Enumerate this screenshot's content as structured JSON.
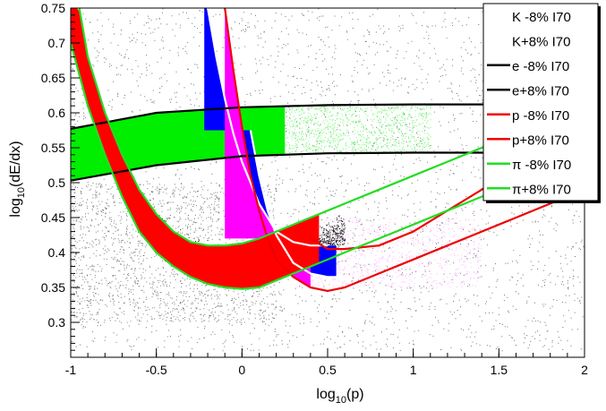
{
  "chart_data": {
    "type": "scatter",
    "xlabel": "log10(p)",
    "ylabel": "log10(dE/dx)",
    "xlabel_main": "log",
    "xlabel_sub": "10",
    "xlabel_rest": "(p)",
    "ylabel_main": "log",
    "ylabel_sub": "10",
    "ylabel_rest": "(dE/dx)",
    "xlim": [
      -1,
      2
    ],
    "ylim": [
      0.25,
      0.75
    ],
    "x_ticks": [
      -1,
      -0.5,
      0,
      0.5,
      1,
      1.5,
      2
    ],
    "x_tick_labels": [
      "-1",
      "-0.5",
      "0",
      "0.5",
      "1",
      "1.5",
      "2"
    ],
    "y_ticks": [
      0.3,
      0.35,
      0.4,
      0.45,
      0.5,
      0.55,
      0.6,
      0.65,
      0.7,
      0.75
    ],
    "y_tick_labels": [
      "0.3",
      "0.35",
      "0.4",
      "0.45",
      "0.5",
      "0.55",
      "0.6",
      "0.65",
      "0.7",
      "0.75"
    ],
    "legend_position": "top-right",
    "colors": {
      "data_points": "#000000",
      "electron_band": "#00ee00",
      "proton_band": "#ff0000",
      "pion_band": "#ff0000",
      "kaon_band": "#0000ff",
      "kaon_inner": "#ff00ff",
      "kaon_line": "#ffffff",
      "electron_line": "#000000",
      "proton_line": "#ee0000",
      "pion_line": "#22dd22"
    },
    "legend": [
      {
        "label": "K -8%  I70",
        "color": "#ffffff"
      },
      {
        "label": "K+8%  I70",
        "color": "#ffffff"
      },
      {
        "label": "e -8%  I70",
        "color": "#000000"
      },
      {
        "label": "e+8%  I70",
        "color": "#000000"
      },
      {
        "label": "p -8%  I70",
        "color": "#ee0000"
      },
      {
        "label": "p+8%  I70",
        "color": "#ee0000"
      },
      {
        "label": "π -8%  I70",
        "color": "#22dd22"
      },
      {
        "label": "π+8%  I70",
        "color": "#22dd22"
      }
    ],
    "series": [
      {
        "name": "K -8%  I70",
        "x": [
          0.05,
          0.1,
          0.15,
          0.2,
          0.3,
          0.4,
          0.5,
          0.6
        ],
        "y": [
          0.575,
          0.51,
          0.46,
          0.425,
          0.385,
          0.37,
          0.365,
          0.365
        ]
      },
      {
        "name": "K+8%  I70",
        "x": [
          -0.2,
          -0.15,
          -0.1,
          -0.05,
          0,
          0.1,
          0.2,
          0.3,
          0.4,
          0.5
        ],
        "y": [
          0.75,
          0.68,
          0.62,
          0.57,
          0.53,
          0.47,
          0.43,
          0.415,
          0.41,
          0.41
        ]
      },
      {
        "name": "e -8%  I70",
        "x": [
          -1,
          -0.5,
          0,
          0.5,
          1,
          1.5,
          2
        ],
        "y": [
          0.503,
          0.525,
          0.538,
          0.542,
          0.543,
          0.543,
          0.543
        ]
      },
      {
        "name": "e+8%  I70",
        "x": [
          -1,
          -0.5,
          0,
          0.5,
          1,
          1.5,
          2
        ],
        "y": [
          0.577,
          0.6,
          0.608,
          0.611,
          0.612,
          0.612,
          0.612
        ]
      },
      {
        "name": "p -8%  I70",
        "x": [
          -0.1,
          -0.05,
          0,
          0.05,
          0.1,
          0.15,
          0.2,
          0.3,
          0.4,
          0.5,
          0.6,
          0.8,
          1,
          1.2,
          1.4,
          1.6,
          1.8,
          2
        ],
        "y": [
          0.75,
          0.66,
          0.58,
          0.51,
          0.46,
          0.42,
          0.39,
          0.365,
          0.35,
          0.345,
          0.35,
          0.37,
          0.39,
          0.41,
          0.43,
          0.45,
          0.47,
          0.49
        ]
      },
      {
        "name": "p+8%  I70",
        "x": [
          0.4,
          0.5,
          0.6,
          0.8,
          1,
          1.2,
          1.4,
          1.6,
          1.8,
          2
        ],
        "y": [
          0.42,
          0.405,
          0.405,
          0.41,
          0.43,
          0.46,
          0.49,
          0.52,
          0.55,
          0.58
        ]
      },
      {
        "name": "π -8%  I70",
        "x": [
          -1,
          -0.9,
          -0.8,
          -0.7,
          -0.6,
          -0.5,
          -0.4,
          -0.3,
          -0.2,
          -0.1,
          0,
          0.1,
          0.2,
          0.4,
          0.6,
          0.8,
          1,
          1.2,
          1.4,
          1.6
        ],
        "y": [
          0.7,
          0.61,
          0.54,
          0.48,
          0.43,
          0.4,
          0.38,
          0.365,
          0.355,
          0.35,
          0.348,
          0.35,
          0.36,
          0.38,
          0.4,
          0.42,
          0.44,
          0.46,
          0.48,
          0.5
        ]
      },
      {
        "name": "π+8%  I70",
        "x": [
          -0.95,
          -0.9,
          -0.8,
          -0.7,
          -0.6,
          -0.5,
          -0.4,
          -0.3,
          -0.2,
          -0.1,
          0,
          0.1,
          0.2,
          0.4,
          0.6,
          0.8,
          1,
          1.2,
          1.4,
          1.6
        ],
        "y": [
          0.75,
          0.68,
          0.6,
          0.54,
          0.49,
          0.455,
          0.43,
          0.415,
          0.41,
          0.41,
          0.413,
          0.42,
          0.43,
          0.45,
          0.47,
          0.49,
          0.51,
          0.53,
          0.55,
          0.575
        ]
      }
    ]
  }
}
